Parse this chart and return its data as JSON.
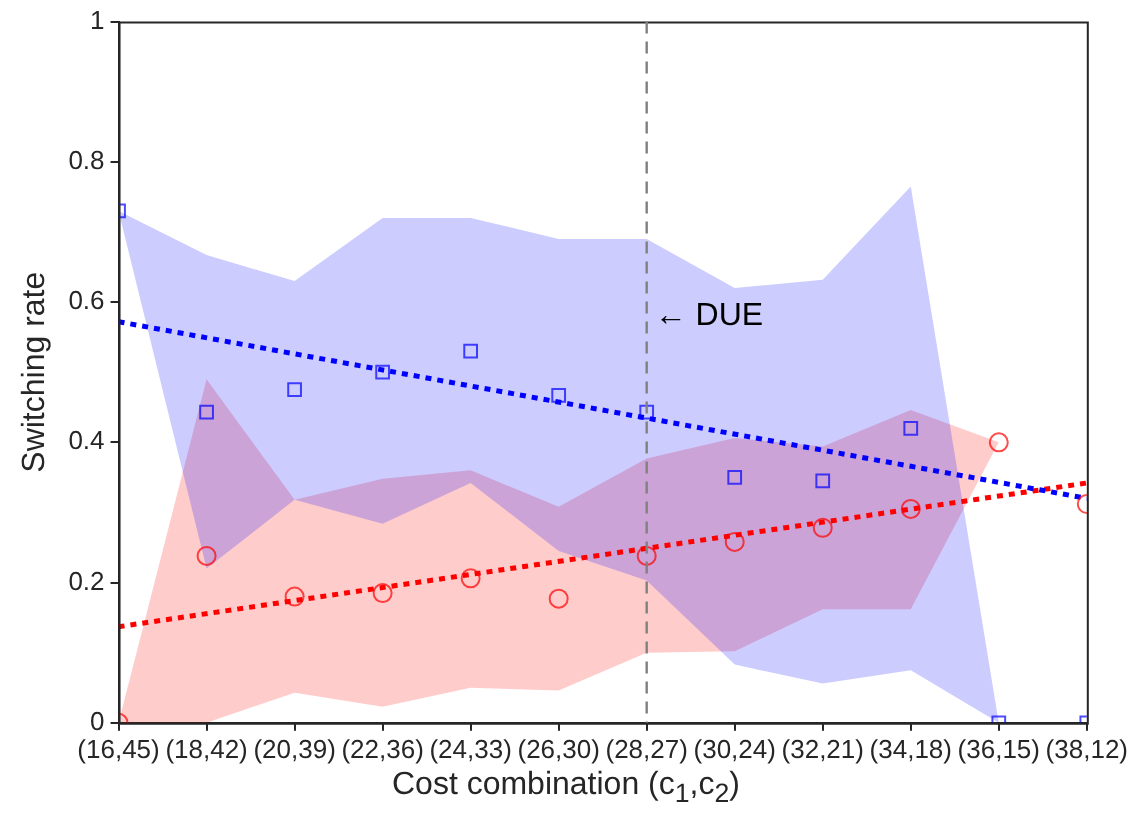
{
  "chart_data": {
    "type": "scatter",
    "xlabel": "Cost combination (c$_{1}$,c$_{2}$)",
    "ylabel": "Switching rate",
    "categories": [
      "(16,45)",
      "(18,42)",
      "(20,39)",
      "(22,36)",
      "(24,33)",
      "(26,30)",
      "(28,27)",
      "(30,24)",
      "(32,21)",
      "(34,18)",
      "(36,15)",
      "(38,12)"
    ],
    "ylim": [
      0,
      1
    ],
    "yticks": [
      0,
      0.2,
      0.4,
      0.6,
      0.8,
      1
    ],
    "series": [
      {
        "marker": "square",
        "color": "#0000ff",
        "values": [
          0.73,
          0.443,
          0.475,
          0.5,
          0.53,
          0.467,
          0.443,
          0.35,
          0.345,
          0.42,
          0,
          0
        ],
        "lower": [
          0.73,
          0.22,
          0.318,
          0.284,
          0.342,
          0.245,
          0.203,
          0.083,
          0.056,
          0.075,
          0,
          0
        ],
        "upper": [
          0.73,
          0.667,
          0.63,
          0.72,
          0.72,
          0.69,
          0.69,
          0.62,
          0.632,
          0.765,
          0,
          0
        ]
      },
      {
        "marker": "circle",
        "color": "#ff0000",
        "values": [
          0,
          0.238,
          0.18,
          0.185,
          0.206,
          0.177,
          0.238,
          0.258,
          0.278,
          0.305,
          0.4,
          0.312
        ],
        "lower": [
          0,
          0,
          0.043,
          0.023,
          0.05,
          0.046,
          0.1,
          0.102,
          0.162,
          0.162,
          0.4,
          0.312
        ],
        "upper": [
          0,
          0.49,
          0.318,
          0.348,
          0.36,
          0.308,
          0.377,
          0.406,
          0.394,
          0.446,
          0.4,
          0.312
        ]
      },
      {
        "type": "line",
        "line_style": "dotted",
        "marker": "none",
        "color": "#0000ff",
        "x": [
          "(16,45)",
          "(38,12)"
        ],
        "values": [
          0.572,
          0.32
        ]
      },
      {
        "type": "line",
        "line_style": "dotted",
        "marker": "none",
        "color": "#ff0000",
        "x": [
          "(16,45)",
          "(38,12)"
        ],
        "values": [
          0.137,
          0.342
        ]
      }
    ],
    "ref_lines": [
      {
        "axis": "x",
        "value": "(28,27)",
        "label": "← DUE",
        "color": "#808080",
        "line_style": "dashed"
      }
    ]
  }
}
